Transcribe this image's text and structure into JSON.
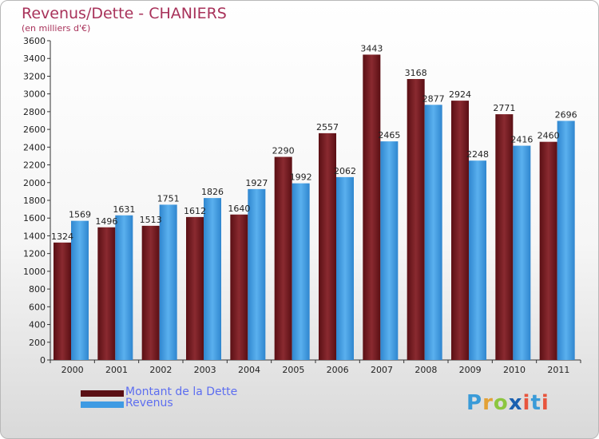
{
  "title": "Revenus/Dette - CHANIERS",
  "subtitle": "(en milliers d'€)",
  "legend": {
    "debt_label": "Montant de la Dette",
    "revenue_label": "Revenus"
  },
  "logo": {
    "text": "Proxiti"
  },
  "colors": {
    "debt": "#7b1d22",
    "revenue": "#3f9be3",
    "title": "#a8325a",
    "legend_text": "#5d6ef0"
  },
  "chart_data": {
    "type": "bar",
    "title": "Revenus/Dette - CHANIERS",
    "subtitle": "(en milliers d'€)",
    "categories": [
      "2000",
      "2001",
      "2002",
      "2003",
      "2004",
      "2005",
      "2006",
      "2007",
      "2008",
      "2009",
      "2010",
      "2011"
    ],
    "series": [
      {
        "name": "Montant de la Dette",
        "values": [
          1324,
          1496,
          1513,
          1612,
          1640,
          2290,
          2557,
          3443,
          3168,
          2924,
          2771,
          2460
        ]
      },
      {
        "name": "Revenus",
        "values": [
          1569,
          1631,
          1751,
          1826,
          1927,
          1992,
          2062,
          2465,
          2877,
          2248,
          2416,
          2696
        ]
      }
    ],
    "ylim": [
      0,
      3600
    ],
    "yticks": [
      0,
      200,
      400,
      600,
      800,
      1000,
      1200,
      1400,
      1600,
      1800,
      2000,
      2200,
      2400,
      2600,
      2800,
      3000,
      3200,
      3400,
      3600
    ],
    "grid": false,
    "legend_position": "bottom-left"
  }
}
